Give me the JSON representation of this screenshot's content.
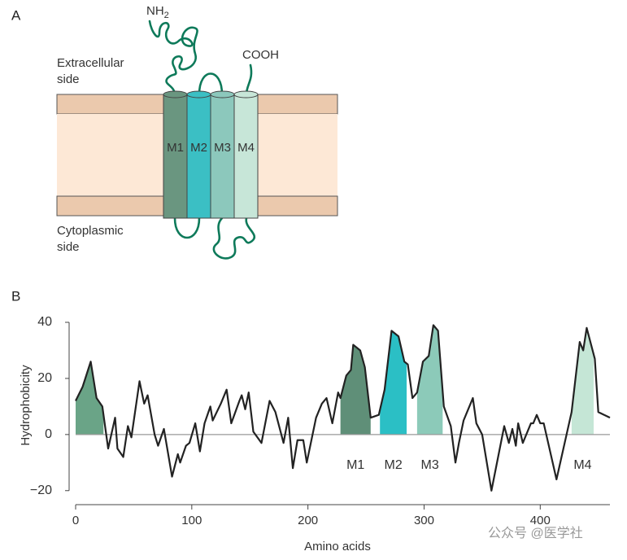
{
  "panel_a": {
    "label": "A",
    "extracellular": [
      "Extracellular",
      "side"
    ],
    "cytoplasmic": [
      "Cytoplasmic",
      "side"
    ],
    "n_terminus": {
      "text": "NH",
      "sub": "2"
    },
    "c_terminus": "COOH",
    "helices": [
      {
        "name": "M1",
        "color": "#6a9680"
      },
      {
        "name": "M2",
        "color": "#3bbfc4"
      },
      {
        "name": "M3",
        "color": "#8cc8bc"
      },
      {
        "name": "M4",
        "color": "#c7e6d8"
      }
    ]
  },
  "chart_data": {
    "type": "line",
    "label": "B",
    "xlabel": "Amino acids",
    "ylabel": "Hydrophobicity",
    "xlim": [
      0,
      460
    ],
    "ylim": [
      -25,
      40
    ],
    "xticks": [
      0,
      100,
      200,
      300,
      400
    ],
    "yticks": [
      {
        "value": -20,
        "label": "−20"
      },
      0,
      20,
      40
    ],
    "color": "#222222",
    "x": [
      0,
      6,
      13,
      18,
      23,
      28,
      34,
      36,
      41,
      45,
      48,
      55,
      59,
      62,
      68,
      71,
      76,
      83,
      88,
      90,
      95,
      98,
      103,
      107,
      111,
      116,
      118,
      125,
      130,
      134,
      141,
      143,
      146,
      149,
      153,
      160,
      167,
      172,
      179,
      183,
      187,
      191,
      196,
      199,
      207,
      212,
      216,
      221,
      226,
      228,
      233,
      237,
      239,
      245,
      249,
      254,
      261,
      266,
      272,
      278,
      283,
      286,
      290,
      294,
      299,
      304,
      308,
      312,
      317,
      323,
      327,
      330,
      334,
      342,
      345,
      350,
      358,
      369,
      373,
      376,
      379,
      381,
      385,
      392,
      394,
      397,
      400,
      403,
      414,
      427,
      434,
      437,
      440,
      447,
      450,
      460
    ],
    "values": [
      12,
      17,
      26,
      13,
      10,
      -5,
      6,
      -5,
      -8,
      3,
      -1,
      19,
      11,
      14,
      0,
      -4,
      2,
      -15,
      -7,
      -10,
      -4,
      -3,
      4,
      -6,
      4,
      10,
      5,
      11,
      16,
      4,
      12,
      14,
      9,
      15,
      1,
      -3,
      12,
      8,
      -3,
      6,
      -12,
      -2,
      -2,
      -10,
      6,
      11,
      13,
      4,
      15,
      13,
      21,
      23,
      32,
      30,
      24,
      6,
      7,
      16,
      37,
      35,
      26,
      25,
      13,
      15,
      26,
      28,
      39,
      37,
      10,
      3,
      -10,
      -3,
      5,
      13,
      4,
      0,
      -20,
      3,
      -3,
      2,
      -4,
      4,
      -3,
      4,
      4,
      7,
      4,
      4,
      -16,
      8,
      33,
      30,
      38,
      27,
      8,
      6
    ],
    "regions": [
      {
        "start": 0,
        "end": 24,
        "color": "#6aa487"
      },
      {
        "name": "M1",
        "start": 228,
        "end": 254,
        "color": "#5f8f78"
      },
      {
        "name": "M2",
        "start": 262,
        "end": 285,
        "color": "#2bbfc5"
      },
      {
        "name": "M3",
        "start": 294,
        "end": 316,
        "color": "#8ccab9"
      },
      {
        "name": "M4",
        "start": 427,
        "end": 446,
        "color": "#c5e6d6"
      }
    ]
  },
  "watermark": "公众号 @医学社"
}
